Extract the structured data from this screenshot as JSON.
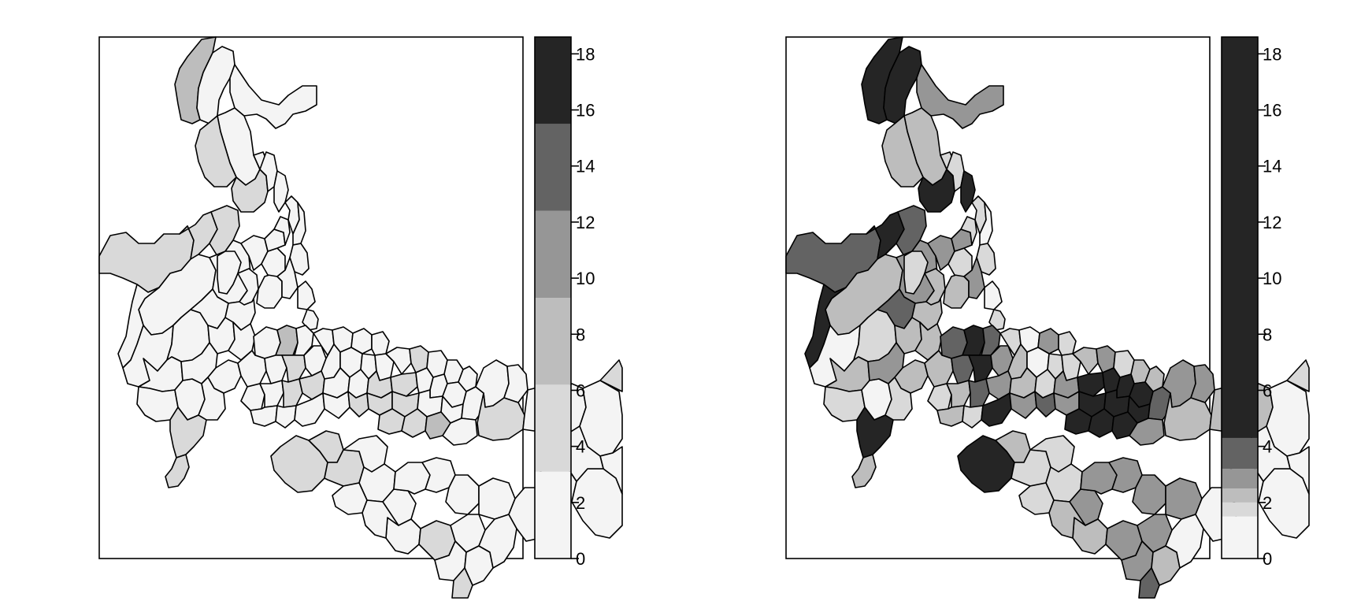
{
  "chart_data": [
    {
      "type": "choropleth",
      "legend_placement": "right",
      "scale_range": [
        0,
        18.6
      ],
      "ticks": [
        "0",
        "2",
        "4",
        "6",
        "8",
        "10",
        "12",
        "14",
        "16",
        "18"
      ],
      "classes": [
        {
          "from": 0,
          "to": 3.1,
          "color": "#f4f4f4"
        },
        {
          "from": 3.1,
          "to": 6.2,
          "color": "#d9d9d9"
        },
        {
          "from": 6.2,
          "to": 9.3,
          "color": "#bdbdbd"
        },
        {
          "from": 9.3,
          "to": 12.4,
          "color": "#969696"
        },
        {
          "from": 12.4,
          "to": 15.5,
          "color": "#636363"
        },
        {
          "from": 15.5,
          "to": 18.6,
          "color": "#252525"
        }
      ]
    },
    {
      "type": "choropleth",
      "legend_placement": "right",
      "scale_range": [
        0,
        18.6
      ],
      "ticks": [
        "0",
        "2",
        "4",
        "6",
        "8",
        "10",
        "12",
        "14",
        "16",
        "18"
      ],
      "classes": [
        {
          "from": 0,
          "to": 1.5,
          "color": "#f4f4f4"
        },
        {
          "from": 1.5,
          "to": 2.0,
          "color": "#d9d9d9"
        },
        {
          "from": 2.0,
          "to": 2.5,
          "color": "#bdbdbd"
        },
        {
          "from": 2.5,
          "to": 3.2,
          "color": "#969696"
        },
        {
          "from": 3.2,
          "to": 4.3,
          "color": "#636363"
        },
        {
          "from": 4.3,
          "to": 18.6,
          "color": "#252525"
        }
      ]
    }
  ]
}
